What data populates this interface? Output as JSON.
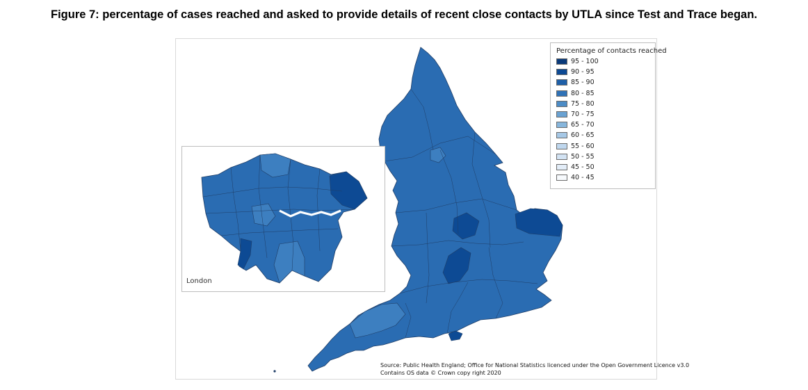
{
  "figure": {
    "title": "Figure 7: percentage of cases reached and asked to provide details of recent close contacts by UTLA since Test and Trace began."
  },
  "map": {
    "inset_label": "London",
    "colors": {
      "region_fill": "#2a6cb2",
      "region_dark": "#0b4a92",
      "region_light": "#3d7fc0",
      "border": "#1f3d66"
    }
  },
  "legend": {
    "title": "Percentage of contacts reached",
    "items": [
      {
        "label": "95 - 100",
        "color": "#0a3a7a"
      },
      {
        "label": "90 - 95",
        "color": "#0d4a94"
      },
      {
        "label": "85 - 90",
        "color": "#1e5fa8"
      },
      {
        "label": "80 - 85",
        "color": "#2f72b7"
      },
      {
        "label": "75 - 80",
        "color": "#4c8cc6"
      },
      {
        "label": "70 - 75",
        "color": "#6aa2d2"
      },
      {
        "label": "65 - 70",
        "color": "#87b6dc"
      },
      {
        "label": "60 - 65",
        "color": "#a6c8e6"
      },
      {
        "label": "55 - 60",
        "color": "#bfd7ee"
      },
      {
        "label": "50 - 55",
        "color": "#d3e3f3"
      },
      {
        "label": "45 - 50",
        "color": "#e3edf8"
      },
      {
        "label": "40 - 45",
        "color": "#f7fafd"
      }
    ]
  },
  "source": {
    "line1": "Source: Public Health England; Office for National Statistics licenced under the Open Government Licence v3.0",
    "line2": "Contains OS data © Crown copy right 2020"
  }
}
